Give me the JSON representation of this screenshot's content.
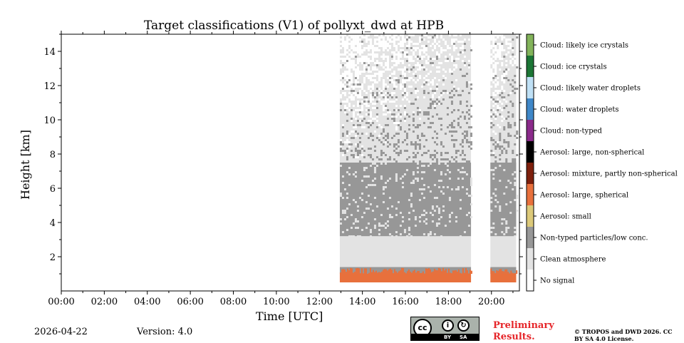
{
  "chart_data": {
    "type": "heatmap",
    "title": "Target classifications (V1) of pollyxt_dwd at HPB",
    "xlabel": "Time [UTC]",
    "ylabel": "Height [km]",
    "xlim_hours": [
      0,
      21.3
    ],
    "ylim_km": [
      0,
      15
    ],
    "x_ticks": [
      "00:00",
      "02:00",
      "04:00",
      "06:00",
      "08:00",
      "10:00",
      "12:00",
      "14:00",
      "16:00",
      "18:00",
      "20:00"
    ],
    "y_ticks": [
      "2",
      "4",
      "6",
      "8",
      "10",
      "12",
      "14"
    ],
    "data_segments": [
      {
        "start_hour": 12.95,
        "end_hour": 19.05
      },
      {
        "start_hour": 19.95,
        "end_hour": 21.15
      }
    ],
    "layers_summary": [
      {
        "class": "Aerosol: large, spherical",
        "from_km": 0.5,
        "to_km": 1.0
      },
      {
        "class": "Non-typed particles/low conc.",
        "from_km": 1.0,
        "to_km": 1.4
      },
      {
        "class": "Clean atmosphere",
        "from_km": 1.4,
        "to_km": 3.2
      },
      {
        "class": "Non-typed particles/low conc.",
        "from_km": 3.2,
        "to_km": 7.5
      },
      {
        "class": "Clean atmosphere",
        "from_km": 7.5,
        "to_km": 15.0
      }
    ],
    "legend": [
      {
        "label": "Cloud: likely ice crystals",
        "color": "#82b35a"
      },
      {
        "label": "Cloud: ice crystals",
        "color": "#1c7535"
      },
      {
        "label": "Cloud: likely water droplets",
        "color": "#bfe0f5"
      },
      {
        "label": "Cloud: water droplets",
        "color": "#3f87c8"
      },
      {
        "label": "Cloud: non-typed",
        "color": "#8a2a8a"
      },
      {
        "label": "Aerosol: large, non-spherical",
        "color": "#000000"
      },
      {
        "label": "Aerosol: mixture, partly non-spherical",
        "color": "#7d1f0c"
      },
      {
        "label": "Aerosol: large, spherical",
        "color": "#e8703c"
      },
      {
        "label": "Aerosol: small",
        "color": "#dcc979"
      },
      {
        "label": "Non-typed particles/low conc.",
        "color": "#979797"
      },
      {
        "label": "Clean atmosphere",
        "color": "#e3e3e3"
      },
      {
        "label": "No signal",
        "color": "#ffffff"
      }
    ]
  },
  "footer": {
    "date": "2026-04-22",
    "version": "Version: 4.0",
    "preliminary": "Preliminary Results.",
    "copyright": "© TROPOS and DWD 2026. CC BY SA 4.0 License.",
    "cc_badge": "cc",
    "by_label": "BY",
    "sa_label": "SA"
  }
}
